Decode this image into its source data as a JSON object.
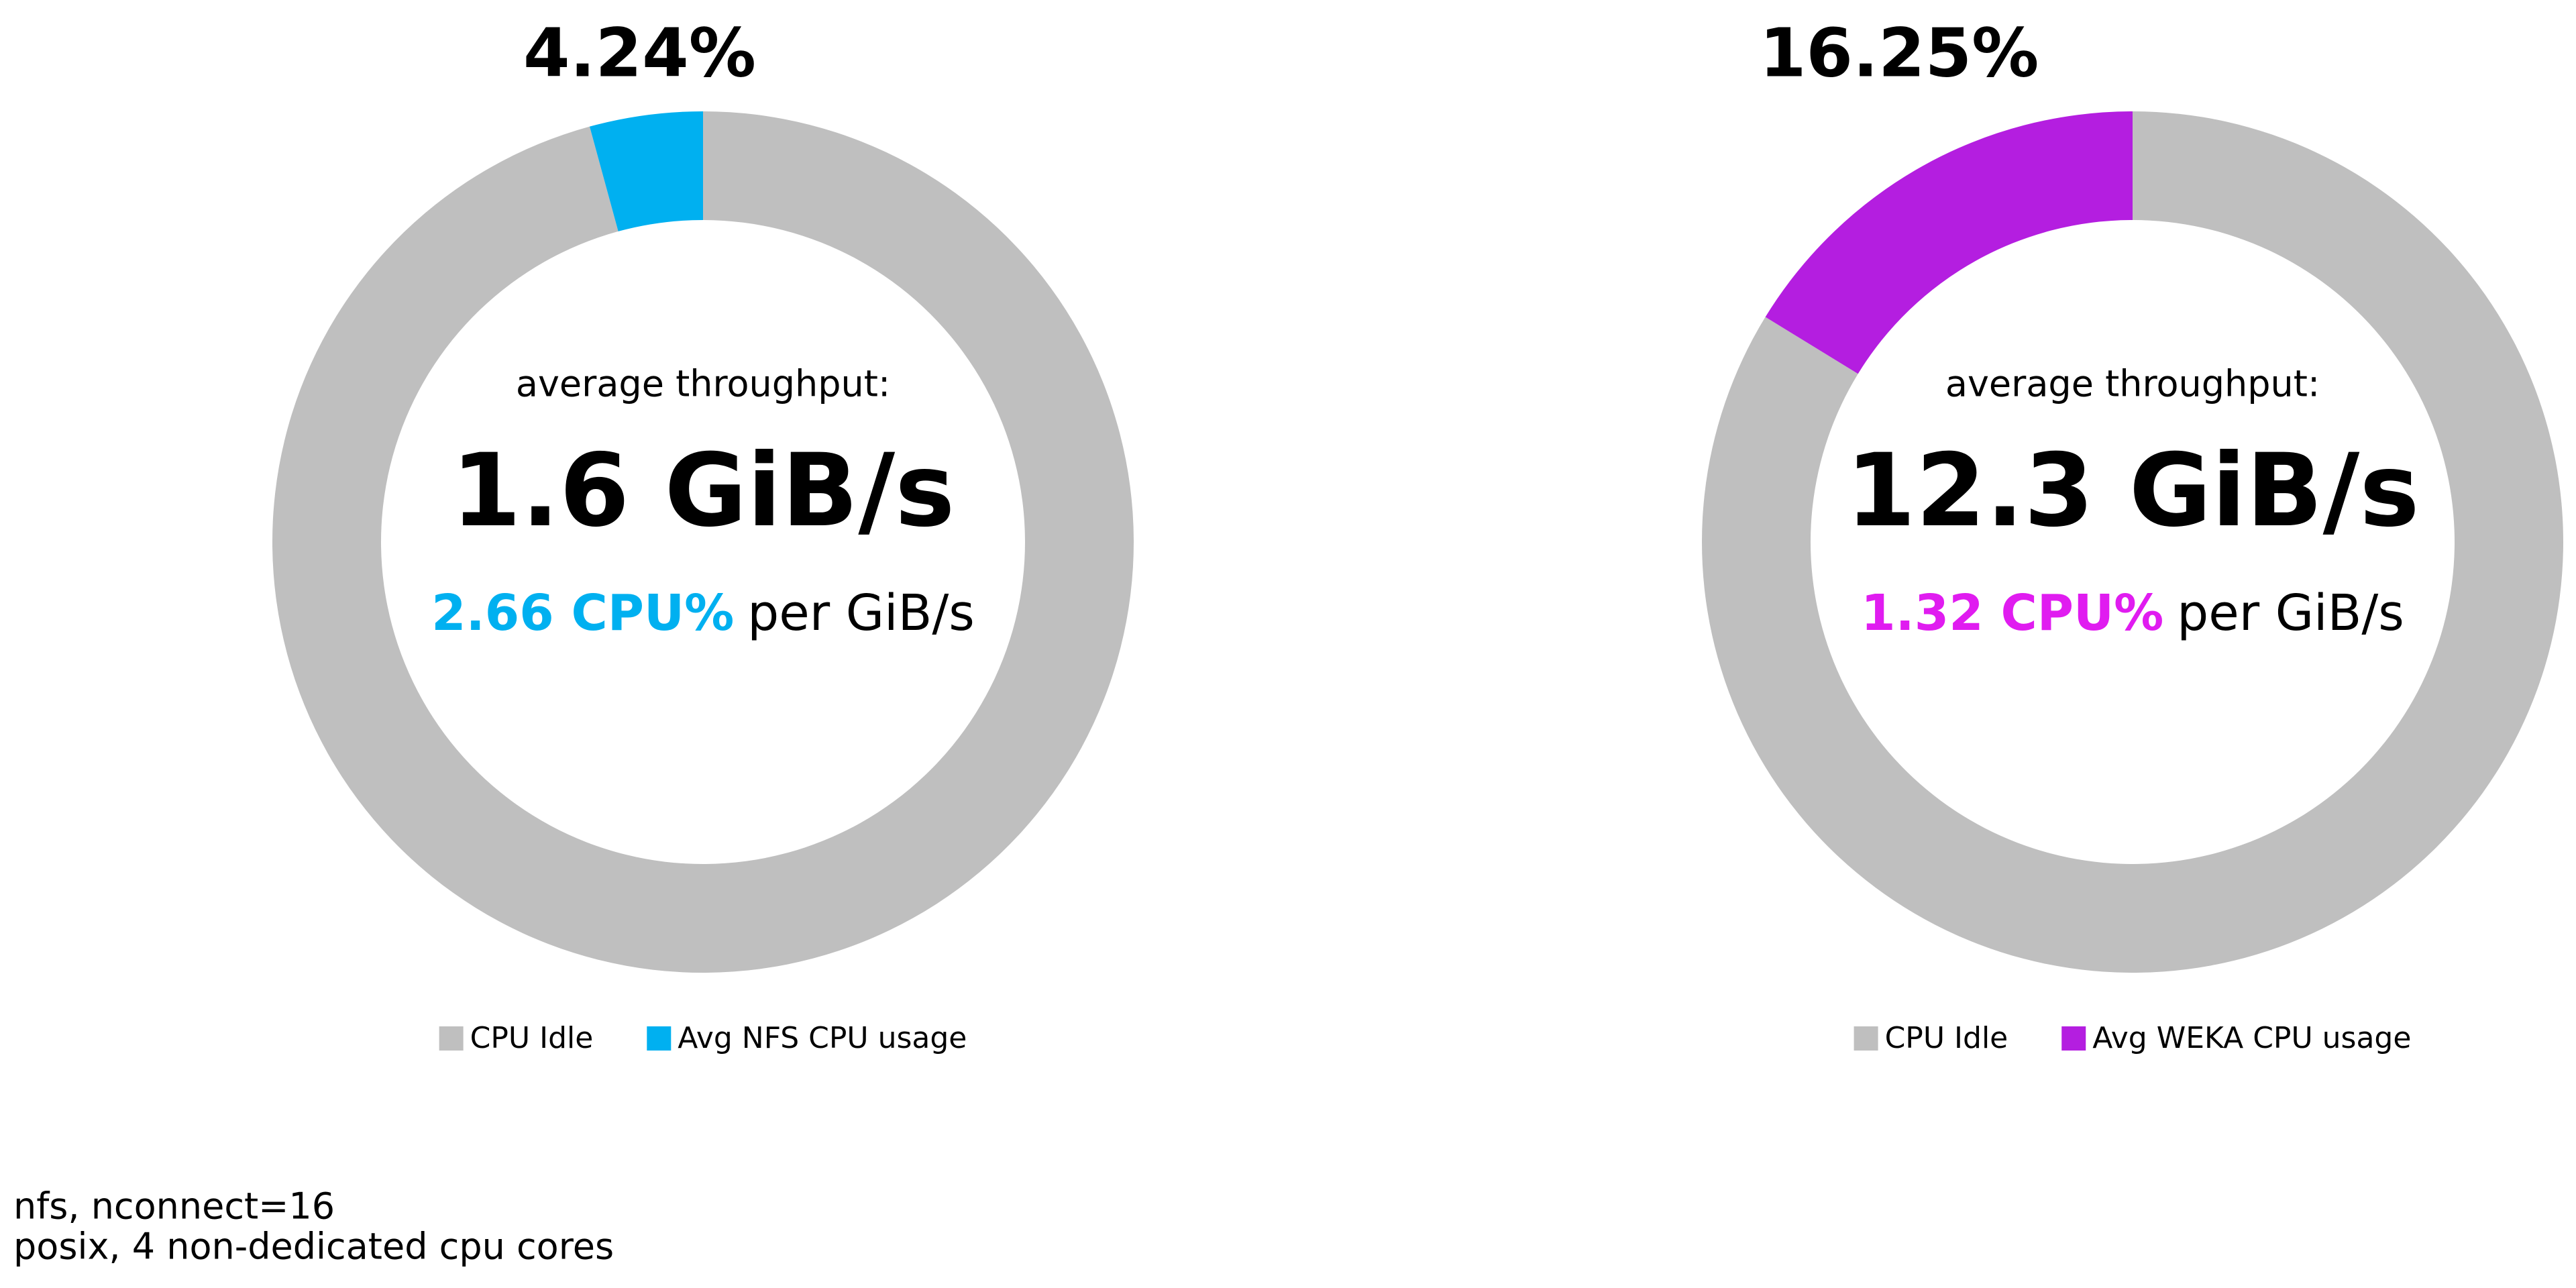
{
  "chart_data": [
    {
      "type": "pie",
      "donut": true,
      "categories": [
        "CPU Idle",
        "Avg NFS CPU usage"
      ],
      "values": [
        95.76,
        4.24
      ],
      "value_labels": [
        null,
        "4.24%"
      ],
      "colors": [
        "#bfbfbf",
        "#00b0f0"
      ],
      "annotations": [
        "average throughput:",
        "1.6 GiB/s",
        "2.66 CPU%",
        "per GiB/s"
      ],
      "highlight_color": "#00b0f0"
    },
    {
      "type": "pie",
      "donut": true,
      "categories": [
        "CPU Idle",
        "Avg WEKA CPU usage"
      ],
      "values": [
        83.75,
        16.25
      ],
      "value_labels": [
        null,
        "16.25%"
      ],
      "colors": [
        "#bfbfbf",
        "#b41ee0"
      ],
      "annotations": [
        "average throughput:",
        "12.3 GiB/s",
        "1.32 CPU%",
        "per GiB/s"
      ],
      "highlight_color": "#e01cf0"
    }
  ],
  "notes": [
    "nfs, nconnect=16",
    "posix, 4 non-dedicated cpu cores"
  ]
}
